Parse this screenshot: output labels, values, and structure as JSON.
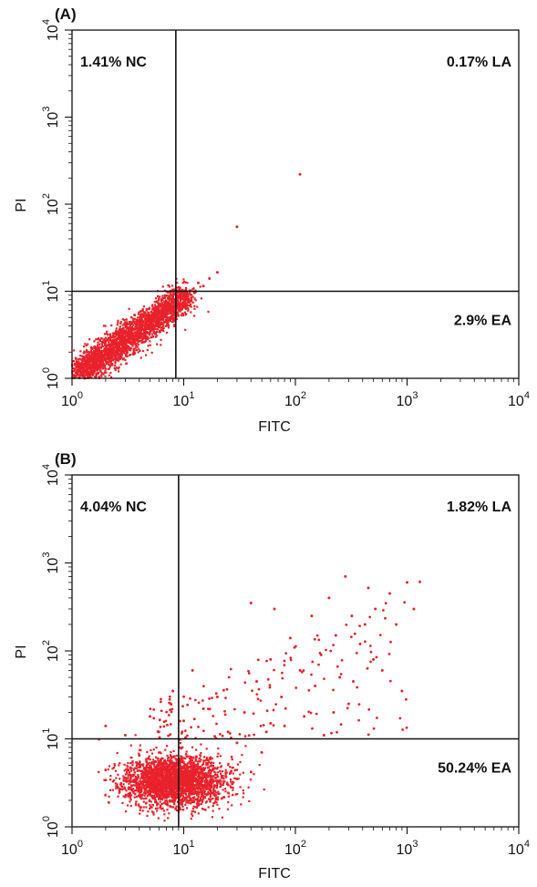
{
  "chart_data": [
    {
      "type": "scatter",
      "panel_label": "(A)",
      "xlabel": "FITC",
      "ylabel": "PI",
      "xlim": [
        1,
        10000
      ],
      "ylim": [
        1,
        10000
      ],
      "x_scale": "log",
      "y_scale": "log",
      "x_tick_labels": [
        {
          "base": "10",
          "exp": "0"
        },
        {
          "base": "10",
          "exp": "1"
        },
        {
          "base": "10",
          "exp": "2"
        },
        {
          "base": "10",
          "exp": "3"
        },
        {
          "base": "10",
          "exp": "4"
        }
      ],
      "y_tick_labels": [
        {
          "base": "10",
          "exp": "0"
        },
        {
          "base": "10",
          "exp": "1"
        },
        {
          "base": "10",
          "exp": "2"
        },
        {
          "base": "10",
          "exp": "3"
        },
        {
          "base": "10",
          "exp": "4"
        }
      ],
      "gate": {
        "x": 8.5,
        "y": 10
      },
      "quadrants": {
        "NC": "1.41% NC",
        "LA": "0.17% LA",
        "EA": "2.9% EA"
      },
      "color": "#e8222b",
      "series": [
        {
          "values": [
            [
              1.2,
              1.1
            ],
            [
              1.5,
              1.3
            ],
            [
              1.8,
              1.6
            ],
            [
              2.1,
              1.9
            ],
            [
              2.5,
              2.2
            ],
            [
              3.0,
              2.6
            ],
            [
              3.5,
              3.1
            ],
            [
              4.2,
              3.6
            ],
            [
              5.0,
              4.2
            ],
            [
              6.0,
              5.0
            ],
            [
              7.2,
              6.0
            ],
            [
              8.5,
              7.2
            ],
            [
              10.5,
              8.4
            ],
            [
              12.5,
              9.6
            ],
            [
              15.0,
              11.5
            ],
            [
              1.1,
              1.5
            ],
            [
              1.4,
              2.0
            ],
            [
              2.0,
              2.7
            ],
            [
              2.8,
              3.4
            ],
            [
              3.8,
              4.6
            ],
            [
              5.5,
              6.3
            ],
            [
              7.5,
              8.4
            ],
            [
              9.5,
              9.8
            ],
            [
              1.3,
              1.0
            ],
            [
              1.8,
              1.2
            ],
            [
              2.6,
              1.6
            ],
            [
              3.6,
              2.1
            ],
            [
              4.8,
              2.9
            ],
            [
              6.5,
              3.8
            ],
            [
              2.2,
              1.4
            ],
            [
              3.2,
              2.3
            ],
            [
              4.5,
              3.4
            ],
            [
              1.6,
              1.8
            ],
            [
              2.4,
              2.5
            ],
            [
              3.3,
              3.7
            ],
            [
              5.8,
              5.3
            ],
            [
              11.0,
              7.5
            ],
            [
              13.5,
              12.5
            ],
            [
              17.0,
              14.0
            ],
            [
              20.0,
              16.5
            ],
            [
              30.0,
              55.0
            ],
            [
              110.0,
              220.0
            ]
          ]
        }
      ]
    },
    {
      "type": "scatter",
      "panel_label": "(B)",
      "xlabel": "FITC",
      "ylabel": "PI",
      "xlim": [
        1,
        10000
      ],
      "ylim": [
        1,
        10000
      ],
      "x_scale": "log",
      "y_scale": "log",
      "x_tick_labels": [
        {
          "base": "10",
          "exp": "0"
        },
        {
          "base": "10",
          "exp": "1"
        },
        {
          "base": "10",
          "exp": "2"
        },
        {
          "base": "10",
          "exp": "3"
        },
        {
          "base": "10",
          "exp": "4"
        }
      ],
      "y_tick_labels": [
        {
          "base": "10",
          "exp": "0"
        },
        {
          "base": "10",
          "exp": "1"
        },
        {
          "base": "10",
          "exp": "2"
        },
        {
          "base": "10",
          "exp": "3"
        },
        {
          "base": "10",
          "exp": "4"
        }
      ],
      "gate": {
        "x": 9,
        "y": 10
      },
      "quadrants": {
        "NC": "4.04% NC",
        "LA": "1.82% LA",
        "EA": "50.24% EA"
      },
      "color": "#e8222b",
      "series": [
        {
          "values": [
            [
              3.0,
              2.2
            ],
            [
              4.0,
              2.8
            ],
            [
              5.0,
              3.2
            ],
            [
              6.5,
              3.6
            ],
            [
              8.0,
              4.0
            ],
            [
              10.0,
              4.3
            ],
            [
              12.5,
              4.0
            ],
            [
              15.0,
              3.6
            ],
            [
              20.0,
              3.3
            ],
            [
              25.0,
              3.0
            ],
            [
              4.5,
              4.2
            ],
            [
              6.0,
              5.0
            ],
            [
              7.5,
              5.6
            ],
            [
              9.5,
              6.0
            ],
            [
              11.5,
              5.4
            ],
            [
              14.0,
              4.8
            ],
            [
              5.5,
              2.6
            ],
            [
              7.0,
              2.9
            ],
            [
              9.0,
              3.0
            ],
            [
              11.0,
              3.2
            ],
            [
              3.5,
              3.8
            ],
            [
              6.8,
              4.6
            ],
            [
              8.8,
              5.2
            ],
            [
              13.0,
              6.2
            ],
            [
              18.0,
              4.4
            ],
            [
              30.0,
              3.5
            ],
            [
              40.0,
              4.2
            ],
            [
              2.5,
              2.9
            ],
            [
              2.0,
              3.4
            ],
            [
              16.0,
              2.7
            ],
            [
              4.0,
              6.5
            ],
            [
              9.5,
              7.8
            ],
            [
              6.0,
              12.0
            ],
            [
              5.0,
              18.0
            ],
            [
              3.0,
              11.0
            ],
            [
              2.0,
              14.0
            ],
            [
              10.0,
              16.0
            ],
            [
              15.0,
              22.0
            ],
            [
              8.0,
              35.0
            ],
            [
              12.0,
              60.0
            ],
            [
              20.0,
              30.0
            ],
            [
              25.0,
              12.0
            ],
            [
              35.0,
              20.0
            ],
            [
              45.0,
              45.0
            ],
            [
              60.0,
              80.0
            ],
            [
              75.0,
              30.0
            ],
            [
              90.0,
              140.0
            ],
            [
              110.0,
              60.0
            ],
            [
              140.0,
              250.0
            ],
            [
              170.0,
              90.0
            ],
            [
              200.0,
              400.0
            ],
            [
              230.0,
              150.0
            ],
            [
              280.0,
              700.0
            ],
            [
              320.0,
              250.0
            ],
            [
              380.0,
              120.0
            ],
            [
              450.0,
              520.0
            ],
            [
              520.0,
              300.0
            ],
            [
              600.0,
              60.0
            ],
            [
              700.0,
              450.0
            ],
            [
              800.0,
              200.0
            ],
            [
              900.0,
              35.0
            ],
            [
              1000.0,
              600.0
            ],
            [
              1150.0,
              300.0
            ],
            [
              1300.0,
              610.0
            ],
            [
              250.0,
              50.0
            ],
            [
              150.0,
              40.0
            ],
            [
              65.0,
              300.0
            ],
            [
              40.0,
              350.0
            ],
            [
              300.0,
              25.0
            ],
            [
              500.0,
              80.0
            ],
            [
              60.0,
              15.0
            ],
            [
              80.0,
              14.0
            ],
            [
              120.0,
              18.0
            ],
            [
              180.0,
              11.0
            ],
            [
              220.0,
              20.0
            ],
            [
              330.0,
              45.0
            ],
            [
              420.0,
              200.0
            ],
            [
              55.0,
              12.0
            ],
            [
              30.0,
              9.0
            ],
            [
              50.0,
              7.0
            ]
          ]
        }
      ]
    }
  ]
}
